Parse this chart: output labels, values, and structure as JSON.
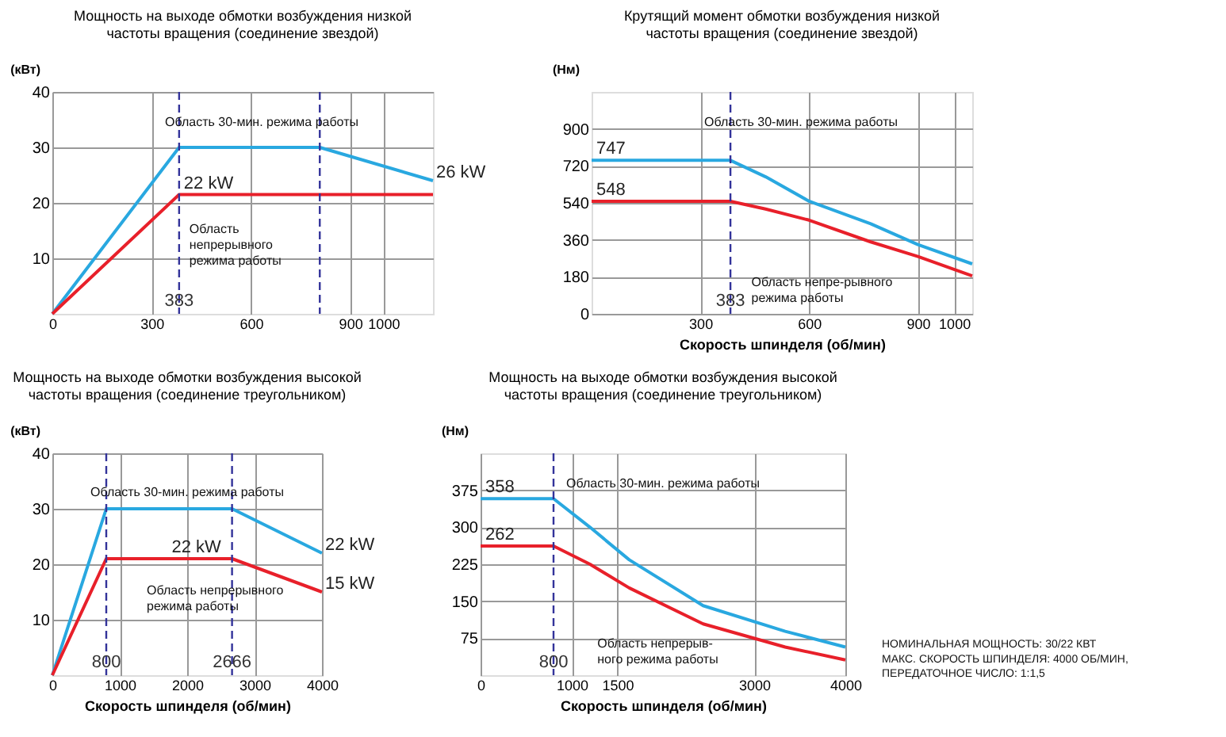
{
  "chart_data": [
    {
      "type": "line",
      "title": "Мощность на выходе обмотки возбуждения низкой частоты вращения (соединение звездой)",
      "ylabel": "(кВт)",
      "xlim": [
        0,
        1150
      ],
      "ylim": [
        0,
        40
      ],
      "xticks": [
        0,
        300,
        600,
        900,
        1000
      ],
      "yticks": [
        10,
        20,
        30,
        40
      ],
      "grid": true,
      "series": [
        {
          "color": "#29a8e0",
          "x": [
            0,
            383,
            808,
            1150
          ],
          "values": [
            0,
            30,
            30,
            24
          ]
        },
        {
          "color": "#e8202a",
          "x": [
            0,
            383,
            1150
          ],
          "values": [
            0,
            21.5,
            21.5
          ]
        }
      ],
      "ref_lines": [
        {
          "axis": "x",
          "value": 383,
          "label": "383",
          "color": "#33339a",
          "line_style": "dashed"
        },
        {
          "axis": "x",
          "value": 808,
          "color": "#33339a",
          "line_style": "dashed"
        }
      ],
      "annotations": [
        "Область 30-мин. режима работы",
        "Область непрерывного режима работы",
        {
          "text": "22 kW",
          "x": 383,
          "y": 21.5
        },
        {
          "text": "26 kW",
          "x": 1150,
          "y": 24
        }
      ]
    },
    {
      "type": "line",
      "title": "Крутящий момент обмотки возбуждения низкой частоты вращения (соединение звездой)",
      "xlabel": "Скорость шпинделя (об/мин)",
      "ylabel": "(Нм)",
      "xlim": [
        0,
        1050
      ],
      "ylim": [
        0,
        1080
      ],
      "xticks": [
        300,
        600,
        900,
        1000
      ],
      "yticks": [
        0,
        180,
        360,
        540,
        720,
        900
      ],
      "grid": true,
      "series": [
        {
          "color": "#29a8e0",
          "x": [
            0,
            383,
            480,
            600,
            770,
            900,
            1050
          ],
          "values": [
            747,
            747,
            667,
            548,
            438,
            337,
            243
          ]
        },
        {
          "color": "#e8202a",
          "x": [
            0,
            383,
            480,
            600,
            770,
            900,
            1050
          ],
          "values": [
            548,
            548,
            510,
            456,
            350,
            279,
            185
          ]
        }
      ],
      "ref_lines": [
        {
          "axis": "x",
          "value": 383,
          "label": "383",
          "color": "#33339a",
          "line_style": "dashed"
        }
      ],
      "annotations": [
        "Область 30-мин. режима работы",
        "Область непре-рывного режима работы",
        {
          "text": "747",
          "x": 0,
          "y": 747
        },
        {
          "text": "548",
          "x": 0,
          "y": 548
        }
      ]
    },
    {
      "type": "line",
      "title": "Мощность на выходе обмотки возбуждения высокой частоты вращения (соединение треугольником)",
      "xlabel": "Скорость шпинделя (об/мин)",
      "ylabel": "(кВт)",
      "xlim": [
        0,
        4000
      ],
      "ylim": [
        0,
        40
      ],
      "xticks": [
        0,
        1000,
        2000,
        3000,
        4000
      ],
      "yticks": [
        10,
        20,
        30,
        40
      ],
      "grid": true,
      "series": [
        {
          "color": "#29a8e0",
          "x": [
            0,
            800,
            2666,
            4000
          ],
          "values": [
            0,
            30,
            30,
            22
          ]
        },
        {
          "color": "#e8202a",
          "x": [
            0,
            800,
            2666,
            4000
          ],
          "values": [
            0,
            21,
            21,
            15
          ]
        }
      ],
      "ref_lines": [
        {
          "axis": "x",
          "value": 800,
          "label": "800",
          "color": "#33339a",
          "line_style": "dashed"
        },
        {
          "axis": "x",
          "value": 2666,
          "label": "2666",
          "color": "#33339a",
          "line_style": "dashed"
        }
      ],
      "annotations": [
        "Область 30-мин. режима работы",
        "Область непрерывного режима работы",
        {
          "text": "22 kW",
          "x": 1700,
          "y": 21
        },
        {
          "text": "22 kW",
          "x": 4000,
          "y": 22
        },
        {
          "text": "15 kW",
          "x": 4000,
          "y": 15
        }
      ]
    },
    {
      "type": "line",
      "title": "Мощность на выходе обмотки возбуждения высокой частоты вращения (соединение треугольником)",
      "xlabel": "Скорость шпинделя (об/мин)",
      "ylabel": "(Нм)",
      "xlim": [
        0,
        4000
      ],
      "ylim": [
        0,
        450
      ],
      "xticks": [
        0,
        1000,
        1500,
        3000,
        4000
      ],
      "yticks": [
        75,
        150,
        225,
        300,
        375
      ],
      "grid": true,
      "series": [
        {
          "color": "#29a8e0",
          "x": [
            0,
            800,
            1200,
            1630,
            2440,
            3340,
            4000
          ],
          "values": [
            358,
            358,
            300,
            234,
            141,
            89,
            57
          ]
        },
        {
          "color": "#e8202a",
          "x": [
            0,
            800,
            1200,
            1630,
            2440,
            3340,
            4000
          ],
          "values": [
            262,
            262,
            225,
            177,
            104,
            57,
            31
          ]
        }
      ],
      "ref_lines": [
        {
          "axis": "x",
          "value": 800,
          "label": "800",
          "color": "#33339a",
          "line_style": "dashed"
        }
      ],
      "annotations": [
        "Область 30-мин. режима работы",
        "Область непрерыв-ного режима работы",
        "НОМИНАЛЬНАЯ МОЩНОСТЬ: 30/22 КВТ",
        "МАКС. СКОРОСТЬ ШПИНДЕЛЯ: 4000 ОБ/МИН, ПЕРЕДАТОЧНОЕ ЧИСЛО: 1:1,5",
        {
          "text": "358",
          "x": 0,
          "y": 358
        },
        {
          "text": "262",
          "x": 0,
          "y": 262
        }
      ]
    }
  ]
}
